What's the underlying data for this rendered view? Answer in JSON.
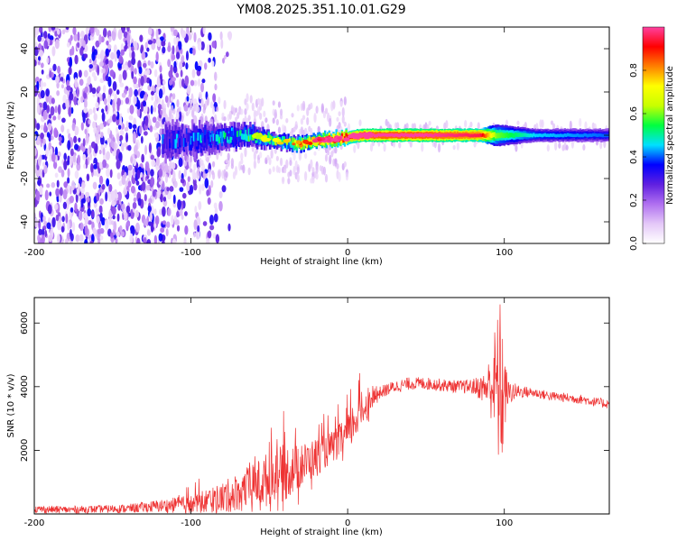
{
  "chart_data": [
    {
      "type": "heatmap",
      "title": "YM08.2025.351.10.01.G29",
      "xlabel": "Height of straight line (km)",
      "ylabel": "Frequency (Hz)",
      "xlim": [
        -200,
        167
      ],
      "ylim": [
        -50,
        50
      ],
      "x_ticks": [
        -200,
        -100,
        0,
        100
      ],
      "y_ticks": [
        -40,
        -20,
        0,
        20,
        40
      ],
      "colorbar": {
        "label": "Normalized spectral amplitude",
        "range": [
          0.0,
          1.0
        ],
        "ticks": [
          0.0,
          0.2,
          0.4,
          0.6,
          0.8
        ],
        "colormap": [
          "#ffffff",
          "#e4c8f8",
          "#b070f0",
          "#6020e0",
          "#0000ff",
          "#00e0ff",
          "#00ff40",
          "#c8ff00",
          "#ffff00",
          "#ff8000",
          "#ff0000",
          "#ff40a0"
        ]
      },
      "ridge": [
        {
          "x": -120,
          "center_hz": -3,
          "halfwidth_hz": 9,
          "amp": 0.35
        },
        {
          "x": -100,
          "center_hz": -2,
          "halfwidth_hz": 8,
          "amp": 0.4
        },
        {
          "x": -80,
          "center_hz": -1,
          "halfwidth_hz": 6,
          "amp": 0.45
        },
        {
          "x": -60,
          "center_hz": 0,
          "halfwidth_hz": 5,
          "amp": 0.5
        },
        {
          "x": -45,
          "center_hz": -3,
          "halfwidth_hz": 3,
          "amp": 0.55
        },
        {
          "x": -30,
          "center_hz": -4,
          "halfwidth_hz": 3,
          "amp": 0.7
        },
        {
          "x": -15,
          "center_hz": -2,
          "halfwidth_hz": 3,
          "amp": 0.85
        },
        {
          "x": 0,
          "center_hz": -1,
          "halfwidth_hz": 3,
          "amp": 0.9
        },
        {
          "x": 10,
          "center_hz": 0,
          "halfwidth_hz": 3,
          "amp": 1.0
        },
        {
          "x": 50,
          "center_hz": 0,
          "halfwidth_hz": 3,
          "amp": 1.0
        },
        {
          "x": 85,
          "center_hz": 0,
          "halfwidth_hz": 3,
          "amp": 0.95
        },
        {
          "x": 95,
          "center_hz": 0,
          "halfwidth_hz": 5,
          "amp": 0.6
        },
        {
          "x": 120,
          "center_hz": 0,
          "halfwidth_hz": 3,
          "amp": 0.45
        },
        {
          "x": 167,
          "center_hz": 0,
          "halfwidth_hz": 3,
          "amp": 0.4
        }
      ]
    },
    {
      "type": "line",
      "title": "",
      "xlabel": "Height of straight line (km)",
      "ylabel": "SNR (10 * v/v)",
      "xlim": [
        -200,
        167
      ],
      "ylim": [
        0,
        6800
      ],
      "x_ticks": [
        -200,
        -100,
        0,
        100
      ],
      "y_ticks": [
        2000,
        4000,
        6000
      ],
      "series": [
        {
          "name": "SNR",
          "color": "#ee3333",
          "x": [
            -200,
            -180,
            -160,
            -140,
            -120,
            -100,
            -90,
            -80,
            -70,
            -60,
            -50,
            -40,
            -30,
            -20,
            -10,
            0,
            5,
            10,
            15,
            20,
            30,
            40,
            50,
            60,
            70,
            80,
            88,
            92,
            96,
            98,
            100,
            102,
            110,
            120,
            130,
            140,
            150,
            160,
            167
          ],
          "y": [
            150,
            130,
            150,
            170,
            250,
            300,
            400,
            500,
            700,
            900,
            1100,
            1300,
            1500,
            1800,
            2100,
            2500,
            3000,
            3300,
            3600,
            3800,
            4000,
            4100,
            4100,
            4050,
            4000,
            4000,
            3950,
            4100,
            4000,
            3900,
            3850,
            3800,
            3850,
            3800,
            3700,
            3650,
            3600,
            3500,
            3450
          ],
          "noise_amplitude": [
            120,
            120,
            120,
            140,
            200,
            300,
            400,
            500,
            600,
            700,
            900,
            900,
            700,
            600,
            500,
            600,
            700,
            500,
            300,
            200,
            200,
            200,
            200,
            200,
            200,
            250,
            500,
            1200,
            2500,
            3000,
            1500,
            400,
            200,
            150,
            150,
            150,
            150,
            150,
            150
          ]
        }
      ]
    }
  ]
}
